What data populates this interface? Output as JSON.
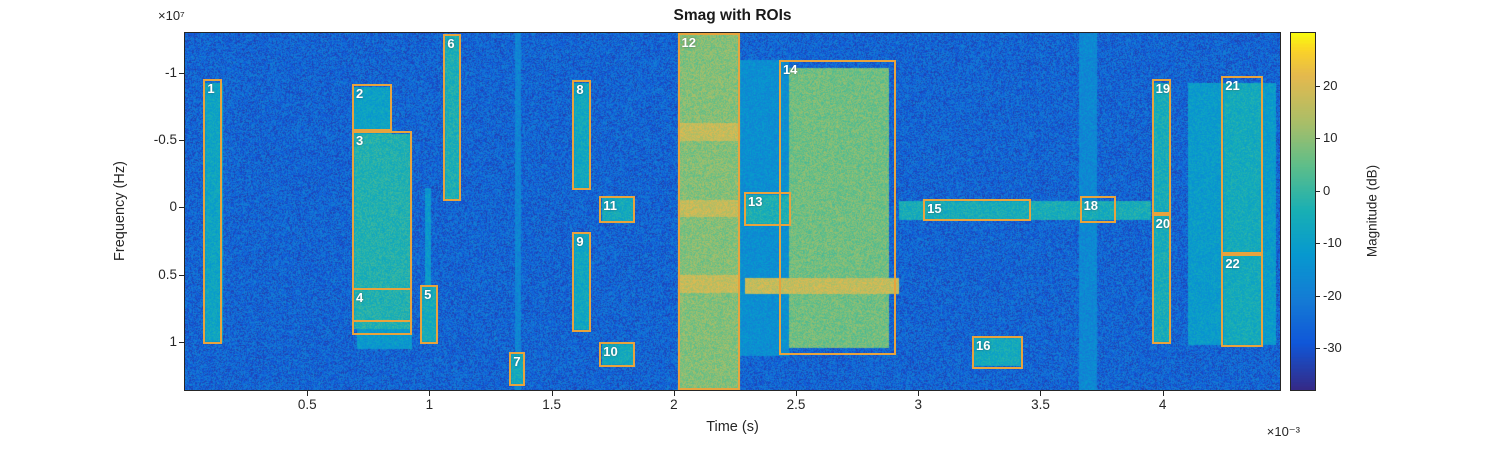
{
  "colors": {
    "roi_border": "#e8a33d",
    "roi_label_text": "#ffffff",
    "axis_text": "#262626",
    "background": "#ffffff"
  },
  "chart_data": {
    "type": "heatmap",
    "subtype": "spectrogram",
    "title": "Smag with ROIs",
    "xlabel": "Time (s)",
    "ylabel": "Frequency (Hz)",
    "x_multiplier": "×10⁻³",
    "y_multiplier": "×10⁷",
    "x_ticks": [
      0.5,
      1,
      1.5,
      2,
      2.5,
      3,
      3.5,
      4
    ],
    "y_ticks": [
      -1,
      -0.5,
      0,
      0.5,
      1
    ],
    "x_range": [
      0,
      4.48
    ],
    "y_range": [
      -1.3,
      1.36
    ],
    "y_axis_reversed": true,
    "grid": false,
    "noise_floor_db": -26,
    "colorbar": {
      "label": "Magnitude (dB)",
      "ticks": [
        20,
        10,
        0,
        -10,
        -20,
        -30
      ],
      "clim": [
        -38,
        30
      ],
      "colormap": "parula",
      "stops": [
        {
          "p": 0.0,
          "color": "#352a87"
        },
        {
          "p": 0.13,
          "color": "#1057d8"
        },
        {
          "p": 0.25,
          "color": "#147bd5"
        },
        {
          "p": 0.38,
          "color": "#0799cf"
        },
        {
          "p": 0.5,
          "color": "#18afb5"
        },
        {
          "p": 0.63,
          "color": "#5fbe89"
        },
        {
          "p": 0.75,
          "color": "#aabe68"
        },
        {
          "p": 0.88,
          "color": "#e4b94e"
        },
        {
          "p": 0.95,
          "color": "#fad229"
        },
        {
          "p": 1.0,
          "color": "#f9fb0e"
        }
      ]
    },
    "rois": [
      {
        "n": 1,
        "t": [
          0.075,
          0.152
        ],
        "f": [
          -0.96,
          1.02
        ]
      },
      {
        "n": 2,
        "t": [
          0.683,
          0.846
        ],
        "f": [
          -0.92,
          -0.57
        ]
      },
      {
        "n": 3,
        "t": [
          0.683,
          0.928
        ],
        "f": [
          -0.57,
          0.85
        ]
      },
      {
        "n": 4,
        "t": [
          0.683,
          0.928
        ],
        "f": [
          0.6,
          0.95
        ]
      },
      {
        "n": 5,
        "t": [
          0.962,
          1.035
        ],
        "f": [
          0.58,
          1.02
        ]
      },
      {
        "n": 6,
        "t": [
          1.057,
          1.13
        ],
        "f": [
          -1.29,
          -0.05
        ]
      },
      {
        "n": 7,
        "t": [
          1.327,
          1.392
        ],
        "f": [
          1.08,
          1.33
        ]
      },
      {
        "n": 8,
        "t": [
          1.585,
          1.662
        ],
        "f": [
          -0.95,
          -0.13
        ]
      },
      {
        "n": 9,
        "t": [
          1.585,
          1.662
        ],
        "f": [
          0.185,
          0.925
        ]
      },
      {
        "n": 10,
        "t": [
          1.695,
          1.84
        ],
        "f": [
          1.005,
          1.185
        ]
      },
      {
        "n": 11,
        "t": [
          1.695,
          1.84
        ],
        "f": [
          -0.085,
          0.115
        ]
      },
      {
        "n": 12,
        "t": [
          2.015,
          2.27
        ],
        "f": [
          -1.3,
          1.36
        ]
      },
      {
        "n": 13,
        "t": [
          2.287,
          2.478
        ],
        "f": [
          -0.115,
          0.14
        ]
      },
      {
        "n": 14,
        "t": [
          2.43,
          2.91
        ],
        "f": [
          -1.1,
          1.1
        ]
      },
      {
        "n": 15,
        "t": [
          3.02,
          3.46
        ],
        "f": [
          -0.06,
          0.1
        ]
      },
      {
        "n": 16,
        "t": [
          3.22,
          3.428
        ],
        "f": [
          0.96,
          1.205
        ]
      },
      {
        "n": 18,
        "t": [
          3.66,
          3.81
        ],
        "f": [
          -0.085,
          0.115
        ]
      },
      {
        "n": 19,
        "t": [
          3.955,
          4.035
        ],
        "f": [
          -0.96,
          0.05
        ]
      },
      {
        "n": 20,
        "t": [
          3.955,
          4.035
        ],
        "f": [
          0.05,
          1.02
        ]
      },
      {
        "n": 21,
        "t": [
          4.24,
          4.41
        ],
        "f": [
          -0.98,
          0.35
        ]
      },
      {
        "n": 22,
        "t": [
          4.24,
          4.41
        ],
        "f": [
          0.35,
          1.04
        ]
      }
    ],
    "energy_regions": [
      {
        "t": [
          0.08,
          0.155
        ],
        "f": [
          -0.93,
          1.0
        ],
        "db": -8
      },
      {
        "t": [
          0.685,
          0.845
        ],
        "f": [
          -0.9,
          -0.55
        ],
        "db": -9
      },
      {
        "t": [
          0.69,
          0.925
        ],
        "f": [
          -0.55,
          0.9
        ],
        "db": -3
      },
      {
        "t": [
          0.7,
          0.925
        ],
        "f": [
          0.88,
          1.05
        ],
        "db": -12
      },
      {
        "t": [
          0.965,
          1.03
        ],
        "f": [
          0.58,
          1.0
        ],
        "db": -6
      },
      {
        "t": [
          0.98,
          1.005
        ],
        "f": [
          -0.15,
          0.95
        ],
        "db": -12
      },
      {
        "t": [
          1.06,
          1.125
        ],
        "f": [
          -1.29,
          -0.06
        ],
        "db": -4
      },
      {
        "t": [
          1.33,
          1.39
        ],
        "f": [
          1.09,
          1.32
        ],
        "db": -6
      },
      {
        "t": [
          1.35,
          1.372
        ],
        "f": [
          -1.3,
          1.36
        ],
        "db": -18
      },
      {
        "t": [
          1.59,
          1.655
        ],
        "f": [
          -0.93,
          -0.14
        ],
        "db": -7
      },
      {
        "t": [
          1.59,
          1.655
        ],
        "f": [
          0.19,
          0.91
        ],
        "db": -7
      },
      {
        "t": [
          1.705,
          1.835
        ],
        "f": [
          1.01,
          1.17
        ],
        "db": -6
      },
      {
        "t": [
          1.705,
          1.835
        ],
        "f": [
          -0.08,
          0.11
        ],
        "db": -6
      },
      {
        "t": [
          2.015,
          2.27
        ],
        "f": [
          -1.3,
          1.36
        ],
        "db": 9
      },
      {
        "t": [
          2.015,
          2.27
        ],
        "f": [
          -0.63,
          -0.5
        ],
        "db": 17
      },
      {
        "t": [
          2.015,
          2.27
        ],
        "f": [
          -0.06,
          0.07
        ],
        "db": 17
      },
      {
        "t": [
          2.015,
          2.27
        ],
        "f": [
          0.5,
          0.63
        ],
        "db": 17
      },
      {
        "t": [
          2.27,
          2.47
        ],
        "f": [
          -1.1,
          1.1
        ],
        "db": -15
      },
      {
        "t": [
          2.29,
          2.47
        ],
        "f": [
          -0.1,
          0.12
        ],
        "db": -4
      },
      {
        "t": [
          2.47,
          2.88
        ],
        "f": [
          -1.04,
          1.04
        ],
        "db": 7
      },
      {
        "t": [
          2.29,
          2.92
        ],
        "f": [
          0.52,
          0.64
        ],
        "db": 17
      },
      {
        "t": [
          2.92,
          3.95
        ],
        "f": [
          -0.05,
          0.09
        ],
        "db": -5
      },
      {
        "t": [
          3.225,
          3.42
        ],
        "f": [
          0.97,
          1.18
        ],
        "db": -6
      },
      {
        "t": [
          3.655,
          3.73
        ],
        "f": [
          -1.3,
          1.36
        ],
        "db": -17
      },
      {
        "t": [
          3.96,
          4.03
        ],
        "f": [
          -0.93,
          1.0
        ],
        "db": -5
      },
      {
        "t": [
          4.1,
          4.46
        ],
        "f": [
          -0.93,
          1.02
        ],
        "db": -11
      },
      {
        "t": [
          4.25,
          4.4
        ],
        "f": [
          -0.93,
          1.02
        ],
        "db": -6
      }
    ]
  }
}
